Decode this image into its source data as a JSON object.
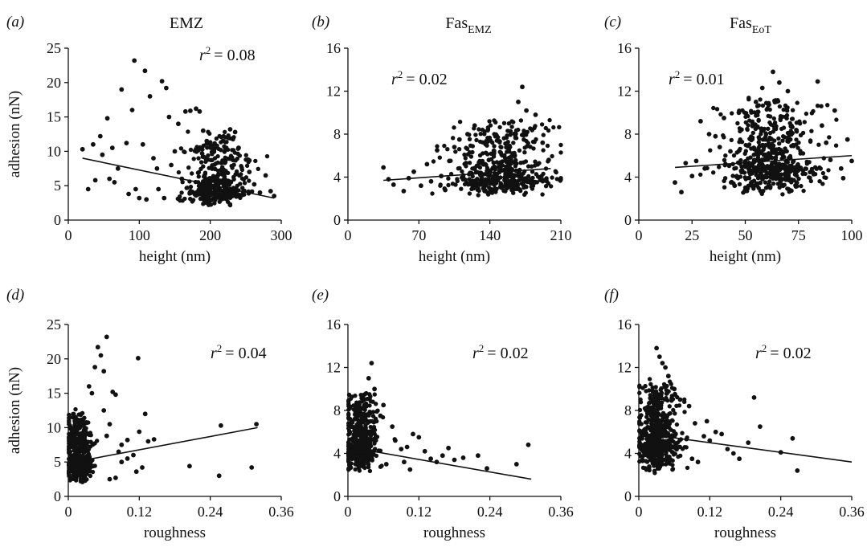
{
  "chart_data": [
    {
      "panel": "(a)",
      "type": "scatter",
      "title": "EMZ",
      "title_sub": "",
      "xlabel": "height (nm)",
      "ylabel": "adhesion (nN)",
      "xticks": [
        0,
        100,
        200,
        300
      ],
      "yticks": [
        0,
        5,
        10,
        15,
        20,
        25
      ],
      "xlim": [
        0,
        300
      ],
      "ylim": [
        0,
        25
      ],
      "r2_label": "= 0.08",
      "trendline": [
        [
          20,
          9.0
        ],
        [
          290,
          3.2
        ]
      ],
      "cloud": {
        "n": 420,
        "cx": 210,
        "sx": 22,
        "ymin": 1.8,
        "ymode": 4.2,
        "ymax": 13
      },
      "points": [
        [
          20,
          10.3
        ],
        [
          28,
          4.5
        ],
        [
          35,
          11
        ],
        [
          38,
          5.8
        ],
        [
          45,
          12.2
        ],
        [
          48,
          9.5
        ],
        [
          55,
          14.8
        ],
        [
          62,
          10.5
        ],
        [
          75,
          19
        ],
        [
          82,
          11.2
        ],
        [
          90,
          16
        ],
        [
          93,
          23.2
        ],
        [
          100,
          3.2
        ],
        [
          105,
          11
        ],
        [
          108,
          21.7
        ],
        [
          115,
          18
        ],
        [
          120,
          9
        ],
        [
          127,
          4.5
        ],
        [
          132,
          20.2
        ],
        [
          138,
          19.2
        ],
        [
          142,
          15
        ],
        [
          150,
          10
        ],
        [
          155,
          14
        ],
        [
          160,
          6
        ],
        [
          165,
          15.8
        ],
        [
          172,
          15.9
        ],
        [
          180,
          16.2
        ],
        [
          185,
          15.8
        ],
        [
          190,
          13
        ],
        [
          195,
          11.5
        ],
        [
          228,
          13.2
        ],
        [
          235,
          12.8
        ],
        [
          240,
          10.5
        ],
        [
          255,
          7
        ],
        [
          262,
          5.2
        ],
        [
          270,
          4
        ],
        [
          278,
          6.5
        ],
        [
          285,
          4.2
        ],
        [
          290,
          3.5
        ],
        [
          95,
          4.5
        ],
        [
          110,
          3
        ],
        [
          125,
          7.5
        ],
        [
          135,
          3.2
        ],
        [
          145,
          8
        ],
        [
          85,
          3.8
        ],
        [
          70,
          7.5
        ],
        [
          58,
          6
        ],
        [
          65,
          5.5
        ]
      ]
    },
    {
      "panel": "(b)",
      "type": "scatter",
      "title": "Fas",
      "title_sub": "EMZ",
      "xlabel": "height (nm)",
      "ylabel": "",
      "xticks": [
        0,
        70,
        140,
        210
      ],
      "yticks": [
        0,
        4,
        8,
        12,
        16
      ],
      "xlim": [
        0,
        210
      ],
      "ylim": [
        0,
        16
      ],
      "r2_label": "= 0.02",
      "trendline": [
        [
          35,
          3.7
        ],
        [
          200,
          4.8
        ]
      ],
      "cloud": {
        "n": 520,
        "cx": 150,
        "sx": 24,
        "ymin": 2,
        "ymode": 3.8,
        "ymax": 9.5
      },
      "points": [
        [
          35,
          4.9
        ],
        [
          40,
          3.8
        ],
        [
          45,
          3.3
        ],
        [
          55,
          2.7
        ],
        [
          60,
          3.9
        ],
        [
          65,
          4.5
        ],
        [
          72,
          3.2
        ],
        [
          78,
          5.2
        ],
        [
          82,
          3.6
        ],
        [
          88,
          6.5
        ],
        [
          92,
          4.1
        ],
        [
          96,
          2.8
        ],
        [
          100,
          5.5
        ],
        [
          168,
          11
        ],
        [
          172,
          12.4
        ],
        [
          176,
          10.2
        ],
        [
          185,
          9.8
        ],
        [
          192,
          7.2
        ],
        [
          198,
          5.6
        ],
        [
          105,
          6.8
        ],
        [
          110,
          7.5
        ],
        [
          118,
          8
        ],
        [
          125,
          8.8
        ]
      ]
    },
    {
      "panel": "(c)",
      "type": "scatter",
      "title": "Fas",
      "title_sub": "EoT",
      "xlabel": "height (nm)",
      "ylabel": "",
      "xticks": [
        0,
        25,
        50,
        75,
        100
      ],
      "yticks": [
        0,
        4,
        8,
        12,
        16
      ],
      "xlim": [
        0,
        100
      ],
      "ylim": [
        0,
        16
      ],
      "r2_label": "= 0.01",
      "trendline": [
        [
          17,
          4.9
        ],
        [
          100,
          6.0
        ]
      ],
      "cloud": {
        "n": 560,
        "cx": 62,
        "sx": 11,
        "ymin": 2,
        "ymode": 4.8,
        "ymax": 12
      },
      "points": [
        [
          17,
          3.5
        ],
        [
          20,
          2.6
        ],
        [
          22,
          5.3
        ],
        [
          25,
          4.1
        ],
        [
          27,
          5.5
        ],
        [
          29,
          9.2
        ],
        [
          31,
          4.8
        ],
        [
          33,
          8
        ],
        [
          36,
          7.8
        ],
        [
          38,
          6.8
        ],
        [
          40,
          9.5
        ],
        [
          43,
          6.4
        ],
        [
          63,
          13.8
        ],
        [
          84,
          12.9
        ],
        [
          88,
          7.2
        ],
        [
          92,
          10.2
        ],
        [
          95,
          4.8
        ],
        [
          98,
          7.5
        ],
        [
          100,
          5.5
        ],
        [
          96,
          3.9
        ],
        [
          90,
          5.6
        ],
        [
          86,
          8.8
        ],
        [
          70,
          12
        ],
        [
          66,
          12.8
        ],
        [
          58,
          12.3
        ],
        [
          55,
          11
        ],
        [
          47,
          10
        ],
        [
          45,
          3.2
        ]
      ]
    },
    {
      "panel": "(d)",
      "type": "scatter",
      "title": "",
      "title_sub": "",
      "xlabel": "roughness",
      "ylabel": "adhesion (nN)",
      "xticks": [
        0,
        0.12,
        0.24,
        0.36
      ],
      "yticks": [
        0,
        5,
        10,
        15,
        20,
        25
      ],
      "xlim": [
        0,
        0.36
      ],
      "ylim": [
        0,
        25
      ],
      "r2_label": "= 0.04",
      "trendline": [
        [
          0.01,
          5.0
        ],
        [
          0.32,
          10.0
        ]
      ],
      "cloud": {
        "n": 470,
        "cx": 0.018,
        "sx": 0.011,
        "ymin": 1.8,
        "ymode": 4.3,
        "ymax": 13
      },
      "points": [
        [
          0.045,
          18.8
        ],
        [
          0.05,
          21.7
        ],
        [
          0.055,
          20.5
        ],
        [
          0.065,
          23.2
        ],
        [
          0.06,
          18.2
        ],
        [
          0.035,
          16
        ],
        [
          0.04,
          15
        ],
        [
          0.075,
          15.2
        ],
        [
          0.08,
          14.8
        ],
        [
          0.07,
          10.5
        ],
        [
          0.06,
          12.5
        ],
        [
          0.085,
          6.5
        ],
        [
          0.1,
          8.2
        ],
        [
          0.11,
          6
        ],
        [
          0.118,
          20.1
        ],
        [
          0.12,
          9.4
        ],
        [
          0.125,
          4.2
        ],
        [
          0.13,
          12
        ],
        [
          0.135,
          8
        ],
        [
          0.115,
          3.6
        ],
        [
          0.145,
          8.3
        ],
        [
          0.09,
          5
        ],
        [
          0.205,
          4.4
        ],
        [
          0.255,
          3
        ],
        [
          0.258,
          10.3
        ],
        [
          0.31,
          4.2
        ],
        [
          0.318,
          10.5
        ],
        [
          0.07,
          2.5
        ],
        [
          0.08,
          2.7
        ],
        [
          0.065,
          8.8
        ],
        [
          0.09,
          7.5
        ],
        [
          0.1,
          5.5
        ]
      ]
    },
    {
      "panel": "(e)",
      "type": "scatter",
      "title": "",
      "title_sub": "",
      "xlabel": "roughness",
      "ylabel": "",
      "xticks": [
        0,
        0.12,
        0.24,
        0.36
      ],
      "yticks": [
        0,
        4,
        8,
        12,
        16
      ],
      "xlim": [
        0,
        0.36
      ],
      "ylim": [
        0,
        16
      ],
      "r2_label": "= 0.02",
      "trendline": [
        [
          0.0,
          4.6
        ],
        [
          0.31,
          1.6
        ]
      ],
      "cloud": {
        "n": 520,
        "cx": 0.022,
        "sx": 0.014,
        "ymin": 2,
        "ymode": 4.2,
        "ymax": 10
      },
      "points": [
        [
          0.04,
          12.4
        ],
        [
          0.035,
          11
        ],
        [
          0.045,
          10
        ],
        [
          0.06,
          8.5
        ],
        [
          0.075,
          6.5
        ],
        [
          0.08,
          5.2
        ],
        [
          0.09,
          4.4
        ],
        [
          0.1,
          4.6
        ],
        [
          0.11,
          5.8
        ],
        [
          0.12,
          5.5
        ],
        [
          0.13,
          4.2
        ],
        [
          0.14,
          3.5
        ],
        [
          0.15,
          3.2
        ],
        [
          0.16,
          3.8
        ],
        [
          0.17,
          4.5
        ],
        [
          0.18,
          3.4
        ],
        [
          0.195,
          3.6
        ],
        [
          0.22,
          3.8
        ],
        [
          0.235,
          2.6
        ],
        [
          0.285,
          3
        ],
        [
          0.305,
          4.8
        ],
        [
          0.095,
          3.2
        ],
        [
          0.105,
          2.5
        ],
        [
          0.065,
          3
        ],
        [
          0.055,
          7.5
        ]
      ]
    },
    {
      "panel": "(f)",
      "type": "scatter",
      "title": "",
      "title_sub": "",
      "xlabel": "roughness",
      "ylabel": "",
      "xticks": [
        0,
        0.12,
        0.24,
        0.36
      ],
      "yticks": [
        0,
        4,
        8,
        12,
        16
      ],
      "xlim": [
        0,
        0.36
      ],
      "ylim": [
        0,
        16
      ],
      "r2_label": "= 0.02",
      "trendline": [
        [
          0.0,
          5.9
        ],
        [
          0.36,
          3.2
        ]
      ],
      "cloud": {
        "n": 540,
        "cx": 0.032,
        "sx": 0.017,
        "ymin": 2,
        "ymode": 5,
        "ymax": 11
      },
      "points": [
        [
          0.03,
          13.8
        ],
        [
          0.035,
          13
        ],
        [
          0.04,
          12.4
        ],
        [
          0.045,
          12
        ],
        [
          0.05,
          11.2
        ],
        [
          0.06,
          10
        ],
        [
          0.07,
          9
        ],
        [
          0.085,
          8.4
        ],
        [
          0.095,
          6.8
        ],
        [
          0.11,
          5.6
        ],
        [
          0.12,
          5.2
        ],
        [
          0.13,
          6
        ],
        [
          0.14,
          5.8
        ],
        [
          0.15,
          4.4
        ],
        [
          0.16,
          4
        ],
        [
          0.17,
          3.5
        ],
        [
          0.185,
          5
        ],
        [
          0.195,
          9.2
        ],
        [
          0.205,
          6.5
        ],
        [
          0.24,
          4.1
        ],
        [
          0.26,
          5.4
        ],
        [
          0.268,
          2.4
        ],
        [
          0.1,
          3.2
        ],
        [
          0.115,
          7
        ],
        [
          0.09,
          3.5
        ]
      ]
    }
  ]
}
